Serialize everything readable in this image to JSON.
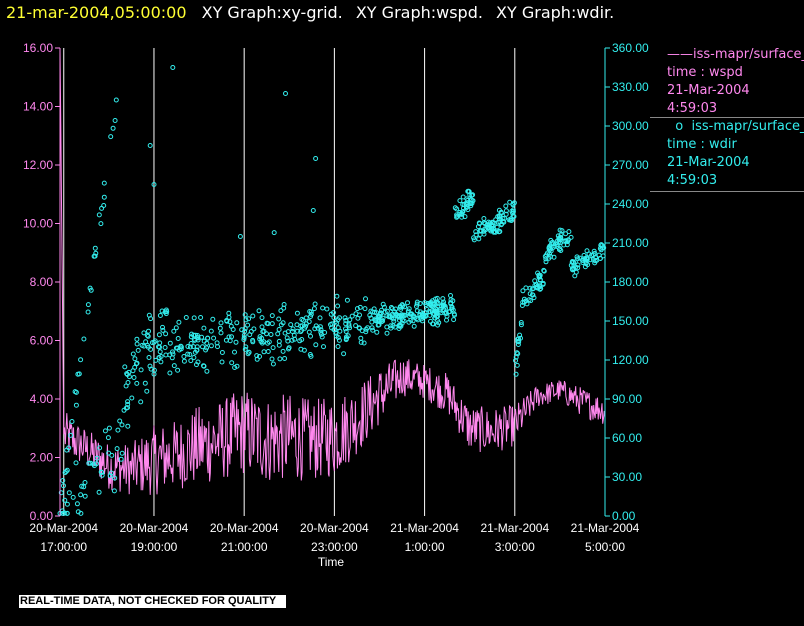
{
  "title": {
    "timestamp": "21-mar-2004,05:00:00",
    "graphs": [
      "XY Graph:xy-grid.",
      "XY Graph:wspd.",
      "XY Graph:wdir."
    ]
  },
  "legend": {
    "wspd": {
      "name": "iss-mapr/surface_",
      "line2": "time : wspd",
      "line3": "21-Mar-2004",
      "line4": "4:59:03",
      "color": "#ff88ee"
    },
    "wdir": {
      "name": "iss-mapr/surface_",
      "line2": "time : wdir",
      "line3": "21-Mar-2004",
      "line4": "4:59:03",
      "color": "#33eeee"
    }
  },
  "footer": {
    "qc_note": "REAL-TIME DATA, NOT CHECKED FOR QUALITY"
  },
  "chart_data": {
    "type": "line+scatter",
    "xlabel": "Time",
    "xlim": [
      "20-Mar-2004 16:55",
      "21-Mar-2004 05:00"
    ],
    "x_ticks": [
      {
        "date": "20-Mar-2004",
        "time": "17:00:00"
      },
      {
        "date": "20-Mar-2004",
        "time": "19:00:00"
      },
      {
        "date": "20-Mar-2004",
        "time": "21:00:00"
      },
      {
        "date": "20-Mar-2004",
        "time": "23:00:00"
      },
      {
        "date": "21-Mar-2004",
        "time": "1:00:00"
      },
      {
        "date": "21-Mar-2004",
        "time": "3:00:00"
      },
      {
        "date": "21-Mar-2004",
        "time": "5:00:00"
      }
    ],
    "grid": "vertical lines at each time tick",
    "y_left": {
      "ylim": [
        0,
        16
      ],
      "ticks": [
        "0.00",
        "2.00",
        "4.00",
        "6.00",
        "8.00",
        "10.00",
        "12.00",
        "14.00",
        "16.00"
      ],
      "color": "#ff88ee"
    },
    "y_right": {
      "ylim": [
        0,
        360
      ],
      "ticks": [
        "0.00",
        "30.00",
        "60.00",
        "90.00",
        "120.00",
        "150.00",
        "180.00",
        "210.00",
        "240.00",
        "270.00",
        "300.00",
        "330.00",
        "360.00"
      ],
      "color": "#33eeee"
    },
    "series": [
      {
        "name": "iss-mapr/surface_ time : wspd",
        "type": "line",
        "axis": "left",
        "color": "#ff88ee",
        "x": [
          "20-Mar-2004 16:55",
          "20-Mar-2004 17:00",
          "20-Mar-2004 17:30",
          "20-Mar-2004 18:00",
          "20-Mar-2004 18:30",
          "20-Mar-2004 19:00",
          "20-Mar-2004 19:30",
          "20-Mar-2004 20:00",
          "20-Mar-2004 20:30",
          "20-Mar-2004 21:00",
          "20-Mar-2004 21:30",
          "20-Mar-2004 22:00",
          "20-Mar-2004 22:30",
          "20-Mar-2004 23:00",
          "20-Mar-2004 23:30",
          "21-Mar-2004 00:00",
          "21-Mar-2004 00:30",
          "21-Mar-2004 01:00",
          "21-Mar-2004 01:30",
          "21-Mar-2004 02:00",
          "21-Mar-2004 02:30",
          "21-Mar-2004 03:00",
          "21-Mar-2004 03:30",
          "21-Mar-2004 04:00",
          "21-Mar-2004 04:30",
          "21-Mar-2004 05:00"
        ],
        "values": [
          16.0,
          2.8,
          2.3,
          1.7,
          1.6,
          1.9,
          2.1,
          2.4,
          2.6,
          2.9,
          2.6,
          2.7,
          2.6,
          2.7,
          3.3,
          4.1,
          4.8,
          4.6,
          4.2,
          3.0,
          2.9,
          3.1,
          4.1,
          4.3,
          3.9,
          3.6
        ],
        "noise": [
          0,
          0.8,
          0.7,
          0.8,
          0.9,
          1.2,
          1.2,
          1.4,
          1.4,
          1.5,
          1.5,
          1.5,
          1.4,
          1.4,
          1.2,
          1.0,
          0.7,
          0.6,
          0.7,
          0.8,
          0.8,
          0.7,
          0.4,
          0.4,
          0.5,
          0.5
        ]
      },
      {
        "name": "iss-mapr/surface_ time : wdir",
        "type": "scatter",
        "axis": "right",
        "color": "#33eeee",
        "clusters": [
          {
            "x_from": "20-Mar-2004 16:55",
            "x_to": "20-Mar-2004 18:15",
            "center": [
              5,
              340
            ],
            "spread": 12,
            "n": 35
          },
          {
            "x_from": "20-Mar-2004 16:55",
            "x_to": "20-Mar-2004 18:20",
            "center": [
              5,
              55
            ],
            "spread": 30,
            "n": 45
          },
          {
            "x_from": "20-Mar-2004 18:20",
            "x_to": "20-Mar-2004 19:20",
            "center": [
              95,
              150
            ],
            "spread": 35,
            "n": 70
          },
          {
            "x_from": "20-Mar-2004 19:20",
            "x_to": "20-Mar-2004 23:50",
            "center": [
              130,
              150
            ],
            "spread": 25,
            "n": 260
          },
          {
            "x_from": "20-Mar-2004 23:50",
            "x_to": "21-Mar-2004 01:40",
            "center": [
              150,
              160
            ],
            "spread": 12,
            "n": 190
          },
          {
            "x_from": "21-Mar-2004 01:40",
            "x_to": "21-Mar-2004 02:05",
            "center": [
              230,
              245
            ],
            "spread": 10,
            "n": 40
          },
          {
            "x_from": "21-Mar-2004 02:05",
            "x_to": "21-Mar-2004 03:00",
            "center": [
              215,
              235
            ],
            "spread": 10,
            "n": 80
          },
          {
            "x_from": "21-Mar-2004 03:00",
            "x_to": "21-Mar-2004 03:10",
            "center": [
              110,
              150
            ],
            "spread": 15,
            "n": 15
          },
          {
            "x_from": "21-Mar-2004 03:10",
            "x_to": "21-Mar-2004 03:40",
            "center": [
              165,
              185
            ],
            "spread": 10,
            "n": 40
          },
          {
            "x_from": "21-Mar-2004 03:40",
            "x_to": "21-Mar-2004 04:15",
            "center": [
              200,
              220
            ],
            "spread": 10,
            "n": 50
          },
          {
            "x_from": "21-Mar-2004 04:15",
            "x_to": "21-Mar-2004 05:00",
            "center": [
              190,
              205
            ],
            "spread": 8,
            "n": 55
          }
        ],
        "outliers": [
          {
            "x": "20-Mar-2004 19:25",
            "y": 345
          },
          {
            "x": "20-Mar-2004 21:55",
            "y": 325
          },
          {
            "x": "20-Mar-2004 22:35",
            "y": 275
          },
          {
            "x": "20-Mar-2004 22:32",
            "y": 235
          },
          {
            "x": "20-Mar-2004 20:55",
            "y": 215
          },
          {
            "x": "20-Mar-2004 21:40",
            "y": 218
          },
          {
            "x": "20-Mar-2004 18:55",
            "y": 285
          },
          {
            "x": "20-Mar-2004 19:00",
            "y": 255
          }
        ]
      }
    ]
  }
}
